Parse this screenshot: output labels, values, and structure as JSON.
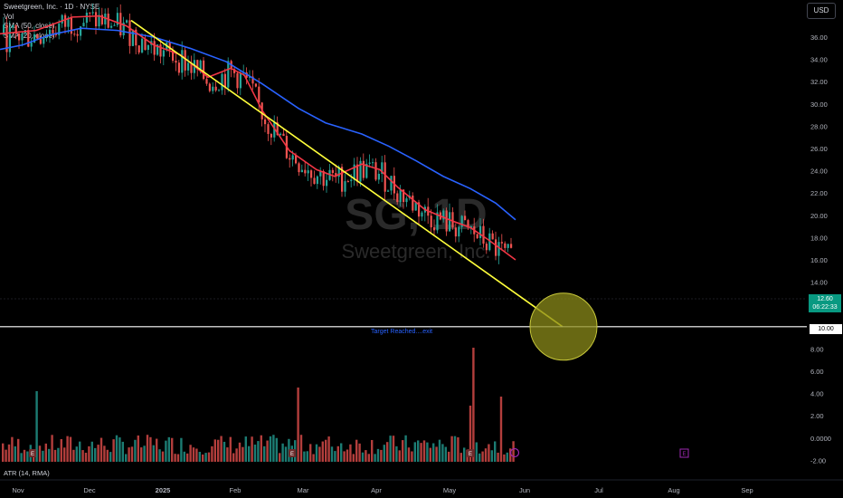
{
  "legend": {
    "title": "Sweetgreen, Inc. · 1D · NYSE",
    "vol": "Vol",
    "sma50": "SMA (50, close)",
    "sma20": "SMA (20, close)"
  },
  "currency": "USD",
  "watermark": {
    "symbol": "SG, 1D",
    "name": "Sweetgreen, Inc."
  },
  "annotation": "Target Reached....exit",
  "price_tag": {
    "current": "12.60",
    "countdown": "06:22:33",
    "target": "10.00"
  },
  "atr_label": "ATR (14, RMA)",
  "colors": {
    "up": "#26a69a",
    "down": "#ef5350",
    "sma50": "#2962ff",
    "sma20": "#f23645",
    "trendline": "#ffff3b",
    "target_circle": "#8b8b1a"
  },
  "chart_data": {
    "type": "candlestick",
    "title": "Sweetgreen, Inc. · 1D · NYSE",
    "y_ticks": [
      "36.00",
      "34.00",
      "32.00",
      "30.00",
      "28.00",
      "26.00",
      "24.00",
      "22.00",
      "20.00",
      "18.00",
      "16.00",
      "14.00",
      "12.00",
      "10.00",
      "8.00",
      "6.00",
      "4.00",
      "2.00",
      "0.0000",
      "-2.00"
    ],
    "x_ticks": [
      "Nov",
      "Dec",
      "2025",
      "Feb",
      "Mar",
      "Apr",
      "May",
      "Jun",
      "Jul",
      "Aug",
      "Sep"
    ],
    "last_price": 12.6,
    "target_price": 10.0,
    "series": [
      {
        "name": "SMA (50, close)",
        "points": [
          [
            0,
            34.9
          ],
          [
            25,
            35.3
          ],
          [
            55,
            36.2
          ],
          [
            90,
            36.8
          ],
          [
            130,
            36.6
          ],
          [
            170,
            36.0
          ],
          [
            210,
            35.0
          ],
          [
            250,
            33.8
          ],
          [
            290,
            31.8
          ],
          [
            330,
            29.6
          ],
          [
            360,
            28.3
          ],
          [
            400,
            27.3
          ],
          [
            430,
            26.2
          ],
          [
            460,
            24.9
          ],
          [
            490,
            23.5
          ],
          [
            520,
            22.4
          ],
          [
            548,
            21.1
          ],
          [
            570,
            19.6
          ]
        ]
      },
      {
        "name": "SMA (20, close)",
        "points": [
          [
            0,
            36.3
          ],
          [
            40,
            36.6
          ],
          [
            80,
            37.8
          ],
          [
            110,
            37.9
          ],
          [
            140,
            37.0
          ],
          [
            170,
            35.3
          ],
          [
            200,
            34.4
          ],
          [
            230,
            32.4
          ],
          [
            255,
            33.2
          ],
          [
            270,
            32.6
          ],
          [
            290,
            29.4
          ],
          [
            320,
            25.8
          ],
          [
            350,
            24.1
          ],
          [
            370,
            23.5
          ],
          [
            400,
            24.6
          ],
          [
            420,
            24.1
          ],
          [
            440,
            22.5
          ],
          [
            470,
            20.5
          ],
          [
            500,
            19.5
          ],
          [
            520,
            18.9
          ],
          [
            540,
            17.8
          ],
          [
            570,
            16.0
          ]
        ]
      },
      {
        "name": "Trendline",
        "points": [
          [
            145,
            37.5
          ],
          [
            622,
            10.0
          ]
        ]
      }
    ]
  }
}
